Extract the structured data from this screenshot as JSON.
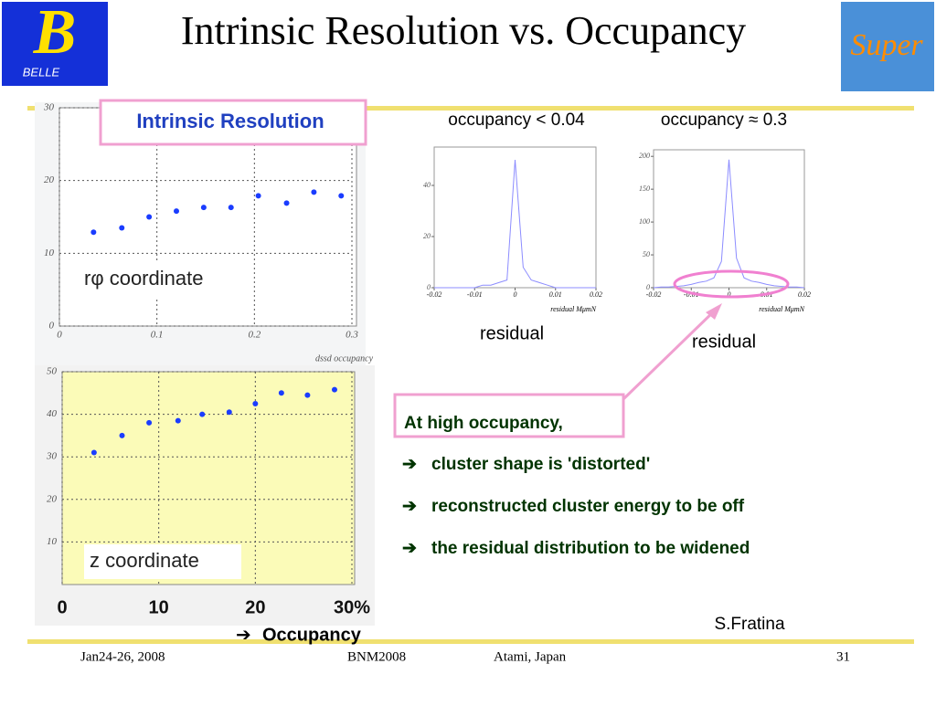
{
  "title": "Intrinsic Resolution vs. Occupancy",
  "logos": [
    "BELLE",
    "Super"
  ],
  "plot_label": "Intrinsic Resolution",
  "occupancy_label": "Occupancy",
  "scatter_top": {
    "type": "scatter",
    "label": "rφ coordinate",
    "xlabel": "dssd occupancy",
    "color": "#1a3cff",
    "x": [
      0.035,
      0.064,
      0.092,
      0.12,
      0.148,
      0.176,
      0.204,
      0.233,
      0.261,
      0.289
    ],
    "y": [
      12.9,
      13.5,
      15,
      15.8,
      16.3,
      16.3,
      17.9,
      16.9,
      18.4,
      17.9
    ],
    "xlim": [
      0,
      0.3
    ],
    "ylim": [
      0,
      30
    ],
    "xticks": [
      0,
      0.1,
      0.2,
      0.3
    ],
    "yticks": [
      0,
      10,
      20,
      30
    ]
  },
  "scatter_bottom": {
    "type": "scatter",
    "label": "z coordinate",
    "color": "#1a3cff",
    "x": [
      3.3,
      6.2,
      9,
      12,
      14.5,
      17.3,
      20,
      22.7,
      25.4,
      28.2
    ],
    "y": [
      31,
      35,
      38,
      38.5,
      40,
      40.5,
      42.5,
      45,
      44.5,
      45.8
    ],
    "xlim": [
      0,
      30
    ],
    "ylim": [
      0,
      50
    ],
    "xticks": [
      0,
      10,
      20,
      {
        "value": 30,
        "label": "30%"
      }
    ],
    "yticks": [
      10,
      20,
      30,
      40,
      50
    ]
  },
  "hist_left": {
    "type": "line",
    "title": "occupancy < 0.04",
    "xlabel": "residual MμmN",
    "below": "residual",
    "color": "#8c8cff",
    "x": [
      -0.02,
      -0.018,
      -0.016,
      -0.014,
      -0.012,
      -0.01,
      -0.008,
      -0.006,
      -0.004,
      -0.002,
      0,
      0.002,
      0.004,
      0.006,
      0.008,
      0.01,
      0.012,
      0.014,
      0.016,
      0.018,
      0.02
    ],
    "values": [
      0,
      0,
      0,
      0,
      0,
      0,
      1,
      1,
      2,
      3,
      50,
      8,
      3,
      2,
      1,
      0,
      0,
      0,
      0,
      0,
      0
    ],
    "xlim": [
      -0.02,
      0.02
    ],
    "ylim": [
      0,
      55
    ],
    "xticks": [
      -0.02,
      -0.01,
      0,
      0.01,
      0.02
    ],
    "yticks": [
      0,
      20,
      40
    ]
  },
  "hist_right": {
    "type": "line",
    "title": "occupancy ≈ 0.3",
    "xlabel": "residual MμmN",
    "below": "residual",
    "color": "#8c8cff",
    "x": [
      -0.02,
      -0.018,
      -0.016,
      -0.014,
      -0.012,
      -0.01,
      -0.008,
      -0.006,
      -0.004,
      -0.002,
      0,
      0.002,
      0.004,
      0.006,
      0.008,
      0.01,
      0.012,
      0.014,
      0.016,
      0.018,
      0.02
    ],
    "values": [
      0,
      1,
      1,
      2,
      3,
      5,
      8,
      10,
      15,
      40,
      195,
      45,
      15,
      10,
      8,
      5,
      3,
      2,
      1,
      1,
      0
    ],
    "xlim": [
      -0.02,
      0.02
    ],
    "ylim": [
      0,
      210
    ],
    "xticks": [
      -0.02,
      -0.01,
      0,
      0.01,
      0.02
    ],
    "yticks": [
      0,
      50,
      100,
      150,
      200
    ]
  },
  "callout": {
    "heading": "At high occupancy,",
    "bullets": [
      "cluster shape is 'distorted'",
      "reconstructed cluster energy to be off",
      "the residual distribution to be widened"
    ]
  },
  "author": "S.Fratina",
  "footer": [
    "Jan24-26, 2008",
    "BNM2008",
    "Atami, Japan",
    "31"
  ]
}
